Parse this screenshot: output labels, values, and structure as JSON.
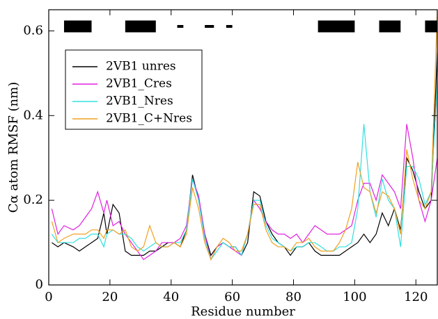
{
  "chart_data": {
    "type": "line",
    "x_label": "Residue number",
    "y_label": "Cα atom RMSF (nm)",
    "xlim": [
      0,
      127
    ],
    "xticks": [
      0,
      20,
      40,
      60,
      80,
      100,
      120
    ],
    "ylim": [
      0,
      0.65
    ],
    "yticks": [
      0,
      0.2,
      0.4,
      0.6
    ],
    "legend": "upper left",
    "regions": [
      {
        "start": 5,
        "end": 14
      },
      {
        "start": 25,
        "end": 35
      },
      {
        "start": 42,
        "end": 44
      },
      {
        "start": 51,
        "end": 54
      },
      {
        "start": 58,
        "end": 60
      },
      {
        "start": 88,
        "end": 100
      },
      {
        "start": 108,
        "end": 115
      },
      {
        "start": 123,
        "end": 127
      }
    ],
    "x": [
      1,
      3,
      5,
      8,
      10,
      12,
      14,
      16,
      18,
      19,
      21,
      23,
      25,
      27,
      29,
      31,
      33,
      35,
      37,
      39,
      41,
      43,
      45,
      47,
      49,
      51,
      53,
      55,
      57,
      59,
      61,
      63,
      65,
      67,
      69,
      71,
      73,
      75,
      77,
      79,
      81,
      83,
      85,
      87,
      89,
      91,
      93,
      95,
      97,
      99,
      101,
      103,
      105,
      107,
      109,
      111,
      113,
      115,
      117,
      119,
      121,
      123,
      125,
      127
    ],
    "series": [
      {
        "name": "2VB1 unres",
        "color": "#000000",
        "values": [
          0.1,
          0.09,
          0.1,
          0.09,
          0.08,
          0.09,
          0.1,
          0.11,
          0.17,
          0.12,
          0.19,
          0.17,
          0.08,
          0.07,
          0.07,
          0.07,
          0.08,
          0.08,
          0.09,
          0.1,
          0.1,
          0.09,
          0.13,
          0.26,
          0.2,
          0.12,
          0.07,
          0.09,
          0.1,
          0.09,
          0.09,
          0.07,
          0.1,
          0.22,
          0.21,
          0.15,
          0.12,
          0.1,
          0.09,
          0.07,
          0.09,
          0.09,
          0.1,
          0.08,
          0.07,
          0.07,
          0.07,
          0.07,
          0.08,
          0.09,
          0.1,
          0.12,
          0.1,
          0.12,
          0.17,
          0.14,
          0.18,
          0.13,
          0.3,
          0.27,
          0.22,
          0.18,
          0.2,
          0.55
        ]
      },
      {
        "name": "2VB1_Cres",
        "color": "#e020e0",
        "values": [
          0.18,
          0.12,
          0.14,
          0.13,
          0.14,
          0.16,
          0.18,
          0.22,
          0.17,
          0.2,
          0.14,
          0.15,
          0.12,
          0.1,
          0.08,
          0.06,
          0.07,
          0.08,
          0.1,
          0.1,
          0.1,
          0.11,
          0.14,
          0.25,
          0.21,
          0.12,
          0.06,
          0.09,
          0.1,
          0.09,
          0.08,
          0.07,
          0.12,
          0.2,
          0.18,
          0.15,
          0.13,
          0.12,
          0.12,
          0.11,
          0.12,
          0.1,
          0.12,
          0.14,
          0.13,
          0.12,
          0.12,
          0.12,
          0.13,
          0.14,
          0.2,
          0.24,
          0.24,
          0.2,
          0.26,
          0.24,
          0.22,
          0.18,
          0.38,
          0.3,
          0.2,
          0.15,
          0.2,
          0.3
        ]
      },
      {
        "name": "2VB1_Nres",
        "color": "#30e0e0",
        "values": [
          0.12,
          0.1,
          0.1,
          0.1,
          0.11,
          0.11,
          0.12,
          0.12,
          0.09,
          0.12,
          0.13,
          0.12,
          0.12,
          0.11,
          0.09,
          0.08,
          0.09,
          0.1,
          0.09,
          0.09,
          0.1,
          0.1,
          0.13,
          0.25,
          0.2,
          0.11,
          0.06,
          0.08,
          0.1,
          0.09,
          0.09,
          0.07,
          0.12,
          0.2,
          0.2,
          0.14,
          0.11,
          0.1,
          0.09,
          0.08,
          0.09,
          0.09,
          0.1,
          0.1,
          0.09,
          0.08,
          0.08,
          0.09,
          0.09,
          0.1,
          0.18,
          0.38,
          0.22,
          0.16,
          0.25,
          0.2,
          0.18,
          0.09,
          0.28,
          0.28,
          0.25,
          0.19,
          0.22,
          0.48
        ]
      },
      {
        "name": "2VB1_C+Nres",
        "color": "#f0a020",
        "values": [
          0.15,
          0.1,
          0.11,
          0.12,
          0.12,
          0.12,
          0.13,
          0.13,
          0.11,
          0.13,
          0.13,
          0.12,
          0.13,
          0.09,
          0.08,
          0.09,
          0.14,
          0.1,
          0.09,
          0.09,
          0.1,
          0.09,
          0.12,
          0.23,
          0.18,
          0.1,
          0.06,
          0.09,
          0.11,
          0.1,
          0.08,
          0.08,
          0.12,
          0.19,
          0.19,
          0.13,
          0.1,
          0.09,
          0.09,
          0.08,
          0.1,
          0.1,
          0.11,
          0.09,
          0.08,
          0.08,
          0.08,
          0.1,
          0.13,
          0.18,
          0.29,
          0.23,
          0.22,
          0.17,
          0.22,
          0.21,
          0.18,
          0.12,
          0.32,
          0.25,
          0.2,
          0.18,
          0.22,
          0.65
        ]
      }
    ]
  }
}
